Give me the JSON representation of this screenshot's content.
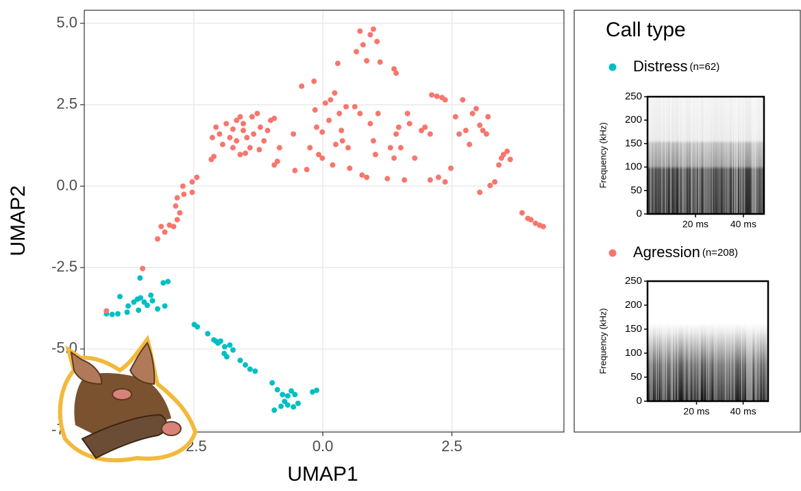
{
  "chart_data": {
    "type": "scatter",
    "xlabel": "UMAP1",
    "ylabel": "UMAP2",
    "xlim": [
      -4.62,
      4.67
    ],
    "ylim": [
      -7.55,
      5.4
    ],
    "xticks": [
      -2.5,
      {
        "value": 0,
        "label": "0.0"
      },
      2.5
    ],
    "yticks": [
      {
        "value": 5,
        "label": "5.0"
      },
      2.5,
      {
        "value": 0,
        "label": "0.0"
      },
      -2.5,
      {
        "value": -5,
        "label": "-5.0"
      },
      -7.5
    ],
    "grid": true,
    "legend_title": "Call type",
    "series": [
      {
        "name": "Distress",
        "count_label": "(n=62)",
        "color": "#00BFC4",
        "x": [
          -4.19,
          -4.08,
          -3.97,
          -3.93,
          -3.77,
          -3.79,
          -3.66,
          -3.59,
          -3.57,
          -3.53,
          -3.46,
          -3.4,
          -3.54,
          -3.3,
          -3.2,
          -3.06,
          -3.09,
          -3.0,
          -3.33,
          -2.49,
          -2.43,
          -2.23,
          -2.11,
          -2.03,
          -1.98,
          -1.9,
          -1.8,
          -1.74,
          -1.91,
          -1.86,
          -1.6,
          -1.5,
          -1.41,
          -1.31,
          -2.07,
          -0.98,
          -0.88,
          -0.78,
          -0.68,
          -0.61,
          -0.54,
          -0.68,
          -0.94,
          -0.81,
          -0.48,
          -0.57,
          -0.74,
          -0.2,
          -0.12
        ],
        "values": [
          -3.92,
          -3.94,
          -3.92,
          -3.39,
          -3.68,
          -3.87,
          -3.56,
          -3.47,
          -3.81,
          -3.43,
          -3.56,
          -3.66,
          -2.82,
          -3.52,
          -3.77,
          -3.68,
          -2.97,
          -2.93,
          -3.35,
          -4.25,
          -4.32,
          -4.53,
          -4.72,
          -4.82,
          -4.76,
          -4.93,
          -4.88,
          -5.03,
          -5.14,
          -5.24,
          -5.35,
          -5.49,
          -5.62,
          -5.68,
          -4.76,
          -6.04,
          -6.25,
          -6.4,
          -6.44,
          -6.29,
          -6.4,
          -6.72,
          -6.88,
          -6.76,
          -6.67,
          -6.78,
          -6.61,
          -6.32,
          -6.27
        ]
      },
      {
        "name": "Agression",
        "count_label": "(n=208)",
        "color": "#F8766D",
        "x": [
          -4.19,
          -3.49,
          -3.2,
          -3.13,
          -3.06,
          -2.97,
          -2.89,
          -2.82,
          -2.85,
          -2.77,
          -2.82,
          -2.69,
          -2.53,
          -2.44,
          -2.71,
          -2.53,
          -2.16,
          -2.11,
          -2.14,
          -2.07,
          -2.0,
          -1.94,
          -1.87,
          -1.74,
          -1.67,
          -1.6,
          -1.54,
          -1.47,
          -1.41,
          -1.74,
          -1.6,
          -1.5,
          -1.37,
          -1.27,
          -1.21,
          -1.14,
          -1.07,
          -1.01,
          -0.94,
          -0.84,
          -1.54,
          -1.34,
          -1.23,
          -1.8,
          -1.67,
          -0.94,
          -0.88,
          -0.57,
          -0.54,
          -0.41,
          -0.31,
          -0.25,
          -0.17,
          -0.15,
          -0.12,
          -0.08,
          -0.01,
          -0.01,
          0.05,
          0.12,
          0.15,
          0.19,
          0.23,
          0.25,
          0.32,
          0.36,
          0.38,
          0.45,
          0.49,
          0.52,
          0.29,
          0.62,
          0.72,
          0.76,
          0.85,
          0.92,
          0.98,
          1.02,
          1.07,
          0.65,
          0.72,
          0.78,
          0.85,
          0.92,
          0.98,
          1.05,
          1.11,
          1.38,
          1.42,
          1.25,
          1.31,
          1.38,
          1.42,
          1.47,
          1.51,
          1.58,
          1.64,
          1.68,
          1.78,
          1.91,
          1.98,
          2.08,
          2.11,
          2.21,
          2.31,
          2.37,
          2.08,
          2.24,
          2.37,
          2.48,
          2.57,
          2.64,
          2.71,
          2.77,
          2.84,
          2.9,
          2.97,
          3.04,
          3.1,
          3.17,
          3.2,
          3.04,
          3.24,
          3.33,
          3.41,
          3.46,
          3.5,
          3.57,
          3.63,
          3.86,
          3.97,
          4.03,
          4.12,
          4.2,
          4.27
        ],
        "values": [
          -3.83,
          -2.53,
          -1.62,
          -1.24,
          -1.41,
          -1.2,
          -1.24,
          -1.03,
          -0.61,
          -0.82,
          -0.36,
          -0.25,
          0.13,
          0.27,
          0.0,
          -0.19,
          0.82,
          0.91,
          1.49,
          1.81,
          1.6,
          1.28,
          1.92,
          1.75,
          2.02,
          2.13,
          1.92,
          1.49,
          1.18,
          1.18,
          0.97,
          1.01,
          2.13,
          2.23,
          1.81,
          1.39,
          1.71,
          2.02,
          2.08,
          1.18,
          1.71,
          1.6,
          1.12,
          1.49,
          1.39,
          0.65,
          0.76,
          1.6,
          0.48,
          3.07,
          0.51,
          1.18,
          3.22,
          2.34,
          1.81,
          0.97,
          1.66,
          0.86,
          2.55,
          2.02,
          2.65,
          0.65,
          2.86,
          1.28,
          2.23,
          1.71,
          1.39,
          2.44,
          1.18,
          0.55,
          3.77,
          2.44,
          2.23,
          0.34,
          0.27,
          1.92,
          1.39,
          0.97,
          2.23,
          4.13,
          4.76,
          4.34,
          3.85,
          4.65,
          4.82,
          4.44,
          3.81,
          3.6,
          3.47,
          0.23,
          1.18,
          0.86,
          1.6,
          1.81,
          1.18,
          0.19,
          2.23,
          1.92,
          0.86,
          1.71,
          1.81,
          1.6,
          2.8,
          2.76,
          2.72,
          2.65,
          0.19,
          0.27,
          0.13,
          0.55,
          2.13,
          1.6,
          2.65,
          1.71,
          1.28,
          2.23,
          2.38,
          1.87,
          1.71,
          1.6,
          2.13,
          -0.19,
          0.02,
          0.13,
          0.65,
          0.86,
          0.97,
          1.07,
          0.82,
          -0.82,
          -0.99,
          -1.03,
          -1.14,
          -1.2,
          -1.24
        ]
      }
    ]
  },
  "spectrograms": [
    {
      "ylabel": "Frequency (kHz)",
      "ylim": [
        0,
        250
      ],
      "yticks": [
        0,
        50,
        100,
        150,
        200,
        250
      ],
      "xlim": [
        0,
        48.6
      ],
      "xticks": [
        {
          "value": 20,
          "label": "20 ms"
        },
        {
          "value": 40,
          "label": "40 ms"
        }
      ]
    },
    {
      "ylabel": "Frequency (kHz)",
      "ylim": [
        0,
        250
      ],
      "yticks": [
        0,
        50,
        100,
        150,
        200,
        250
      ],
      "xlim": [
        -1,
        50.7
      ],
      "xticks": [
        {
          "value": 20,
          "label": "20 ms"
        },
        {
          "value": 40,
          "label": "40 ms"
        }
      ]
    }
  ]
}
